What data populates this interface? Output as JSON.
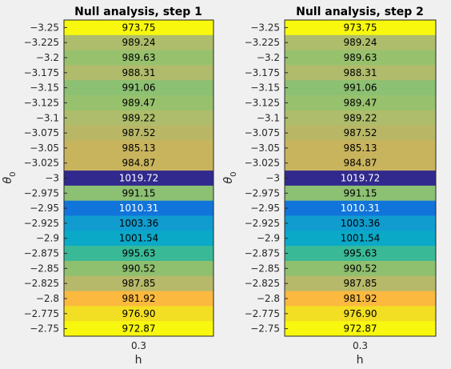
{
  "chart_data": [
    {
      "type": "heatmap",
      "title": "Null analysis, step 1",
      "xlabel": "h",
      "ylabel": "θ",
      "ylabel_subscript": "0",
      "x": [
        "0.3"
      ],
      "y": [
        "-3.25",
        "-3.225",
        "-3.2",
        "-3.175",
        "-3.15",
        "-3.125",
        "-3.1",
        "-3.075",
        "-3.05",
        "-3.025",
        "-3",
        "-2.975",
        "-2.95",
        "-2.925",
        "-2.9",
        "-2.875",
        "-2.85",
        "-2.825",
        "-2.8",
        "-2.775",
        "-2.75"
      ],
      "value_labels": [
        "973.75",
        "989.24",
        "989.63",
        "988.31",
        "991.06",
        "989.47",
        "989.22",
        "987.52",
        "985.13",
        "984.87",
        "1019.72",
        "991.15",
        "1010.31",
        "1003.36",
        "1001.54",
        "995.63",
        "990.52",
        "987.85",
        "981.92",
        "976.90",
        "972.87"
      ],
      "colors": [
        "#f8f80e",
        "#aebd6b",
        "#98c16e",
        "#b0bb6b",
        "#8cc073",
        "#98c16e",
        "#aebd6b",
        "#b9b766",
        "#c9b45e",
        "#c9b45e",
        "#31298d",
        "#8cc073",
        "#1174db",
        "#119ccf",
        "#0aa9c8",
        "#3ab997",
        "#8fc070",
        "#b7b96a",
        "#fbb940",
        "#f2de22",
        "#f8f80e"
      ],
      "colormap": "parula"
    },
    {
      "type": "heatmap",
      "title": "Null analysis, step 2",
      "xlabel": "h",
      "ylabel": "θ",
      "ylabel_subscript": "0",
      "x": [
        "0.3"
      ],
      "y": [
        "-3.25",
        "-3.225",
        "-3.2",
        "-3.175",
        "-3.15",
        "-3.125",
        "-3.1",
        "-3.075",
        "-3.05",
        "-3.025",
        "-3",
        "-2.975",
        "-2.95",
        "-2.925",
        "-2.9",
        "-2.875",
        "-2.85",
        "-2.825",
        "-2.8",
        "-2.775",
        "-2.75"
      ],
      "value_labels": [
        "973.75",
        "989.24",
        "989.63",
        "988.31",
        "991.06",
        "989.47",
        "989.22",
        "987.52",
        "985.13",
        "984.87",
        "1019.72",
        "991.15",
        "1010.31",
        "1003.36",
        "1001.54",
        "995.63",
        "990.52",
        "987.85",
        "981.92",
        "976.90",
        "972.87"
      ],
      "colors": [
        "#f8f80e",
        "#aebd6b",
        "#98c16e",
        "#b0bb6b",
        "#8cc073",
        "#98c16e",
        "#aebd6b",
        "#b9b766",
        "#c9b45e",
        "#c9b45e",
        "#31298d",
        "#8cc073",
        "#1174db",
        "#119ccf",
        "#0aa9c8",
        "#3ab997",
        "#8fc070",
        "#b7b96a",
        "#fbb940",
        "#f2de22",
        "#f8f80e"
      ],
      "colormap": "parula"
    }
  ]
}
